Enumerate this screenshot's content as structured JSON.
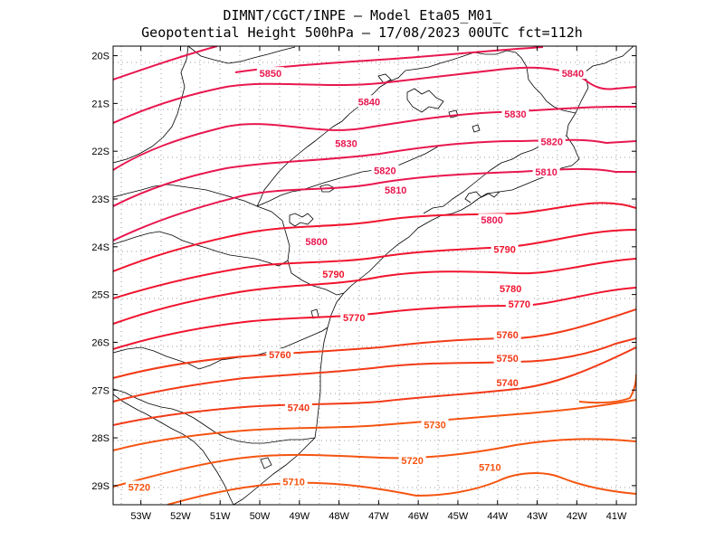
{
  "header": {
    "line1": "DIMNT/CGCT/INPE —  Model Eta05_M01_",
    "line2": "Geopotential Height 500hPa —  17/08/2023 00UTC fct=112h"
  },
  "map": {
    "lon_range": [
      -53.7,
      -40.5
    ],
    "lat_range": [
      -29.4,
      -19.8
    ],
    "lat_ticks": [
      "20S",
      "21S",
      "22S",
      "23S",
      "24S",
      "25S",
      "26S",
      "27S",
      "28S",
      "29S"
    ],
    "lon_ticks": [
      "53W",
      "52W",
      "51W",
      "50W",
      "49W",
      "48W",
      "47W",
      "46W",
      "45W",
      "44W",
      "43W",
      "42W",
      "41W"
    ],
    "contour_labels": [
      {
        "text": "5850",
        "lon": -49.73,
        "lat": -20.37,
        "color": "#e8174f"
      },
      {
        "text": "5840",
        "lon": -47.24,
        "lat": -20.96,
        "color": "#e8174f"
      },
      {
        "text": "5840",
        "lon": -42.1,
        "lat": -20.37,
        "color": "#e8174f"
      },
      {
        "text": "5830",
        "lon": -47.82,
        "lat": -21.84,
        "color": "#e8174f"
      },
      {
        "text": "5830",
        "lon": -43.55,
        "lat": -21.22,
        "color": "#e8174f"
      },
      {
        "text": "5820",
        "lon": -46.84,
        "lat": -22.4,
        "color": "#e8174f"
      },
      {
        "text": "5820",
        "lon": -42.63,
        "lat": -21.8,
        "color": "#e8174f"
      },
      {
        "text": "5810",
        "lon": -46.57,
        "lat": -22.81,
        "color": "#e8174f"
      },
      {
        "text": "5810",
        "lon": -42.77,
        "lat": -22.43,
        "color": "#e8174f"
      },
      {
        "text": "5800",
        "lon": -44.14,
        "lat": -23.44,
        "color": "#e8174f"
      },
      {
        "text": "5800",
        "lon": -48.57,
        "lat": -23.89,
        "color": "#e8174f"
      },
      {
        "text": "5790",
        "lon": -43.82,
        "lat": -24.05,
        "color": "#f0142e"
      },
      {
        "text": "5790",
        "lon": -48.14,
        "lat": -24.57,
        "color": "#f0142e"
      },
      {
        "text": "5780",
        "lon": -43.67,
        "lat": -24.87,
        "color": "#f0142e"
      },
      {
        "text": "5770",
        "lon": -43.45,
        "lat": -25.2,
        "color": "#f0142e"
      },
      {
        "text": "5770",
        "lon": -47.62,
        "lat": -25.48,
        "color": "#f0142e"
      },
      {
        "text": "5760",
        "lon": -43.75,
        "lat": -25.84,
        "color": "#f23a17"
      },
      {
        "text": "5760",
        "lon": -49.49,
        "lat": -26.26,
        "color": "#f23a17"
      },
      {
        "text": "5750",
        "lon": -43.75,
        "lat": -26.33,
        "color": "#f23a17"
      },
      {
        "text": "5740",
        "lon": -43.75,
        "lat": -26.84,
        "color": "#f23a17"
      },
      {
        "text": "5740",
        "lon": -49.02,
        "lat": -27.36,
        "color": "#f23a17"
      },
      {
        "text": "5730",
        "lon": -45.58,
        "lat": -27.72,
        "color": "#f55410"
      },
      {
        "text": "5720",
        "lon": -46.15,
        "lat": -28.47,
        "color": "#f55410"
      },
      {
        "text": "5720",
        "lon": -53.04,
        "lat": -29.03,
        "color": "#f55410"
      },
      {
        "text": "5710",
        "lon": -49.14,
        "lat": -28.92,
        "color": "#f55410"
      },
      {
        "text": "5710",
        "lon": -44.19,
        "lat": -28.61,
        "color": "#f55410"
      }
    ]
  },
  "colors": {
    "line_high": "#e8174f",
    "line_mid": "#f0142e",
    "line_low": "#f23a17",
    "line_lowest": "#f55410",
    "grid": "#999999",
    "coast": "#000000"
  }
}
